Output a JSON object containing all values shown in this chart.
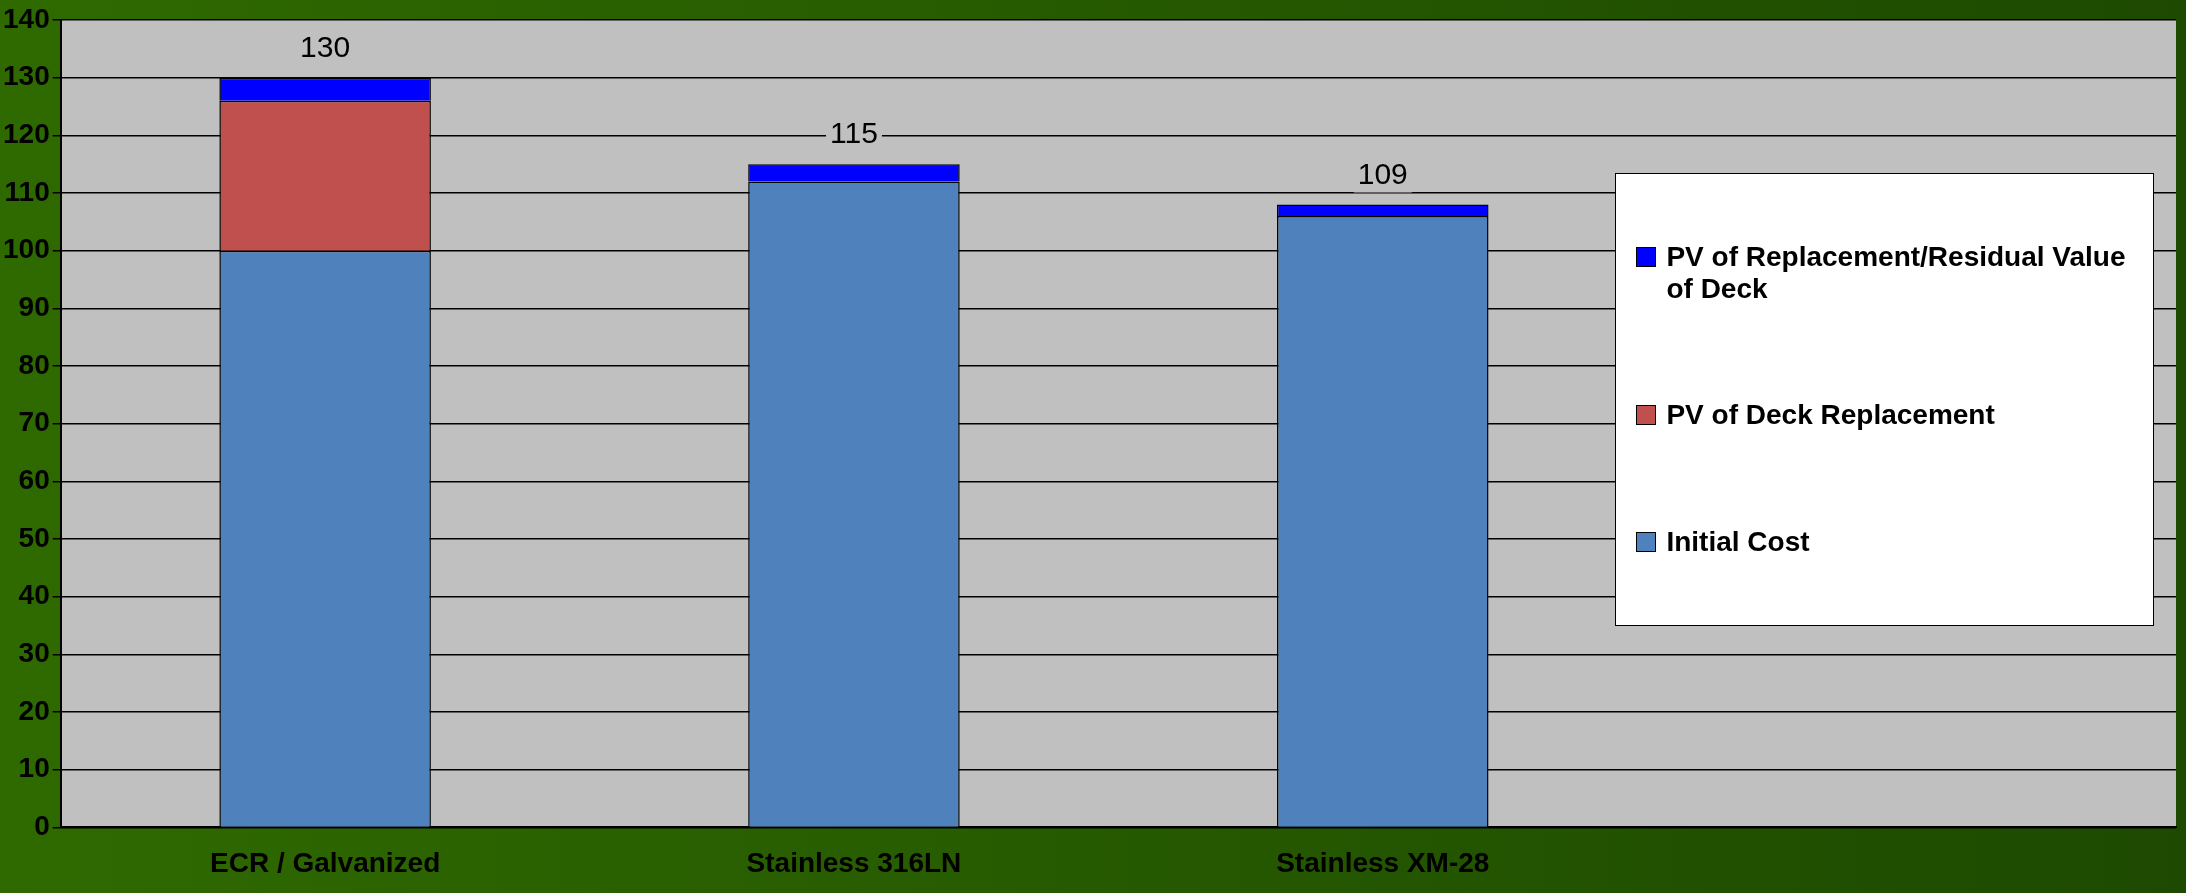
{
  "chart_data": {
    "type": "bar",
    "stacked": true,
    "categories": [
      "ECR / Galvanized",
      "Stainless 316LN",
      "Stainless XM-28",
      null
    ],
    "series": [
      {
        "name": "Initial Cost",
        "color": "#4f81bd",
        "values": [
          100,
          112,
          106,
          null
        ]
      },
      {
        "name": "PV of Deck Replacement",
        "color": "#c0504d",
        "values": [
          26,
          0,
          0,
          null
        ]
      },
      {
        "name": "PV of Replacement/Residual Value of Deck",
        "color": "#0000ff",
        "values": [
          4,
          3,
          2,
          null
        ]
      }
    ],
    "totals": [
      "130",
      "115",
      "109",
      null
    ],
    "ylim": [
      0,
      140
    ],
    "yticks": [
      0,
      10,
      20,
      30,
      40,
      50,
      60,
      70,
      80,
      90,
      100,
      110,
      120,
      130,
      140
    ],
    "grid": "y",
    "legend": "right"
  }
}
